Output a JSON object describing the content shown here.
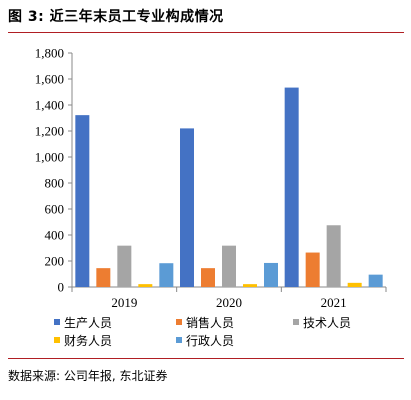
{
  "title": "图 3:  近三年末员工专业构成情况",
  "source": "数据来源: 公司年报, 东北证券",
  "chart_data": {
    "type": "bar",
    "categories": [
      "2019",
      "2020",
      "2021"
    ],
    "series": [
      {
        "name": "生产人员",
        "color": "#4472c4",
        "values": [
          1322,
          1220,
          1534
        ]
      },
      {
        "name": "销售人员",
        "color": "#ed7d31",
        "values": [
          145,
          145,
          265
        ]
      },
      {
        "name": "技术人员",
        "color": "#a5a5a5",
        "values": [
          318,
          318,
          475
        ]
      },
      {
        "name": "财务人员",
        "color": "#ffc000",
        "values": [
          22,
          22,
          32
        ]
      },
      {
        "name": "行政人员",
        "color": "#5b9bd5",
        "values": [
          183,
          185,
          95
        ]
      }
    ],
    "ylim": [
      0,
      1800
    ],
    "yticks": [
      0,
      200,
      400,
      600,
      800,
      1000,
      1200,
      1400,
      1600,
      1800
    ],
    "ytick_labels": [
      "0",
      "200",
      "400",
      "600",
      "800",
      "1,000",
      "1,200",
      "1,400",
      "1,600",
      "1,800"
    ],
    "grid": false,
    "legend_position": "bottom"
  }
}
